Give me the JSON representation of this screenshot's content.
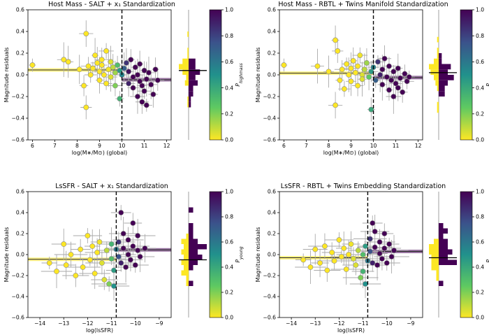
{
  "colormap": [
    "#fde725",
    "#5ec962",
    "#21918c",
    "#3b528b",
    "#440154"
  ],
  "panels": [
    {
      "title": "Host Mass - SALT + x₁ Standardization",
      "xlabel": "log(M∗/M⊙) (global)",
      "ylabel": "Magnitude residuals",
      "xticks": [
        6,
        7,
        8,
        9,
        10,
        11,
        12
      ],
      "yticks": [
        "0.6",
        "0.4",
        "0.2",
        "0.0",
        "−0.2",
        "−0.4",
        "−0.6"
      ],
      "cbar_label": "P_highmass",
      "cbar_ticks": [
        "1.0",
        "0.8",
        "0.6",
        "0.4",
        "0.2",
        "0.0"
      ]
    },
    {
      "title": "Host Mass - RBTL + Twins Manifold Standardization",
      "xlabel": "log(M∗/M⊙) (global)",
      "ylabel": "Magnitude residuals",
      "xticks": [
        6,
        7,
        8,
        9,
        10,
        11,
        12
      ],
      "yticks": [
        "0.6",
        "0.4",
        "0.2",
        "0.0",
        "−0.2",
        "−0.4",
        "−0.6"
      ],
      "cbar_label": "P_highmass",
      "cbar_ticks": [
        "1.0",
        "0.8",
        "0.6",
        "0.4",
        "0.2",
        "0.0"
      ]
    },
    {
      "title": "LsSFR - SALT + x₁ Standardization",
      "xlabel": "log(lsSFR)",
      "ylabel": "Magnitude residuals",
      "xticks": [
        -14,
        -13,
        -12,
        -11,
        -10,
        -9
      ],
      "yticks": [
        "0.6",
        "0.4",
        "0.2",
        "0.0",
        "−0.2",
        "−0.4",
        "−0.6"
      ],
      "cbar_label": "P_young",
      "cbar_ticks": [
        "1.0",
        "0.8",
        "0.6",
        "0.4",
        "0.2",
        "0.0"
      ]
    },
    {
      "title": "LsSFR - RBTL + Twins Embedding Standardization",
      "xlabel": "log(lsSFR)",
      "ylabel": "Magnitude residuals",
      "xticks": [
        -14,
        -13,
        -12,
        -11,
        -10,
        -9
      ],
      "yticks": [
        "0.6",
        "0.4",
        "0.2",
        "0.0",
        "−0.2",
        "−0.4",
        "−0.6"
      ],
      "cbar_label": "P_young",
      "cbar_ticks": [
        "1.0",
        "0.8",
        "0.6",
        "0.4",
        "0.2",
        "0.0"
      ]
    }
  ],
  "chart_data": [
    {
      "type": "scatter",
      "title": "Host Mass - SALT + x₁ Standardization",
      "xlabel": "log(M∗/M⊙) (global)",
      "ylabel": "Magnitude residuals",
      "xlim": [
        5.8,
        12.2
      ],
      "ylim": [
        -0.6,
        0.6
      ],
      "split_x": 10.0,
      "colorbar": {
        "label": "P_highmass",
        "range": [
          0,
          1
        ]
      },
      "step_means": [
        {
          "x": [
            5.8,
            10.0
          ],
          "y": 0.045
        },
        {
          "x": [
            10.0,
            12.2
          ],
          "y": -0.045
        }
      ],
      "histogram_mean_line": 0.04,
      "points": [
        {
          "x": 6.0,
          "y": 0.09,
          "p": 0.0
        },
        {
          "x": 7.4,
          "y": 0.14,
          "p": 0.0
        },
        {
          "x": 7.6,
          "y": 0.12,
          "p": 0.0
        },
        {
          "x": 8.1,
          "y": 0.05,
          "p": 0.0
        },
        {
          "x": 8.4,
          "y": 0.38,
          "p": 0.0
        },
        {
          "x": 8.4,
          "y": -0.3,
          "p": 0.0
        },
        {
          "x": 8.3,
          "y": -0.1,
          "p": 0.0
        },
        {
          "x": 8.5,
          "y": 0.08,
          "p": 0.0
        },
        {
          "x": 8.6,
          "y": 0.0,
          "p": 0.0
        },
        {
          "x": 8.7,
          "y": 0.06,
          "p": 0.0
        },
        {
          "x": 8.8,
          "y": 0.18,
          "p": 0.0
        },
        {
          "x": 8.9,
          "y": 0.11,
          "p": 0.0
        },
        {
          "x": 9.0,
          "y": 0.03,
          "p": 0.0
        },
        {
          "x": 9.0,
          "y": -0.05,
          "p": 0.0
        },
        {
          "x": 9.1,
          "y": 0.14,
          "p": 0.0
        },
        {
          "x": 9.1,
          "y": 0.09,
          "p": 0.0
        },
        {
          "x": 9.2,
          "y": 0.0,
          "p": 0.0
        },
        {
          "x": 9.3,
          "y": 0.22,
          "p": 0.0
        },
        {
          "x": 9.3,
          "y": -0.08,
          "p": 0.0
        },
        {
          "x": 9.4,
          "y": 0.05,
          "p": 0.02
        },
        {
          "x": 9.5,
          "y": 0.12,
          "p": 0.05
        },
        {
          "x": 9.5,
          "y": -0.02,
          "p": 0.05
        },
        {
          "x": 9.6,
          "y": 0.07,
          "p": 0.1
        },
        {
          "x": 9.7,
          "y": 0.02,
          "p": 0.15
        },
        {
          "x": 9.7,
          "y": -0.1,
          "p": 0.2
        },
        {
          "x": 9.8,
          "y": 0.09,
          "p": 0.3
        },
        {
          "x": 9.9,
          "y": -0.22,
          "p": 0.35
        },
        {
          "x": 9.9,
          "y": 0.04,
          "p": 0.45
        },
        {
          "x": 10.0,
          "y": 0.0,
          "p": 0.55
        },
        {
          "x": 10.1,
          "y": 0.06,
          "p": 0.7
        },
        {
          "x": 10.2,
          "y": 0.11,
          "p": 0.85
        },
        {
          "x": 10.3,
          "y": -0.08,
          "p": 0.9
        },
        {
          "x": 10.3,
          "y": 0.03,
          "p": 0.95
        },
        {
          "x": 10.4,
          "y": 0.14,
          "p": 1.0
        },
        {
          "x": 10.5,
          "y": -0.02,
          "p": 1.0
        },
        {
          "x": 10.5,
          "y": -0.12,
          "p": 1.0
        },
        {
          "x": 10.6,
          "y": 0.07,
          "p": 1.0
        },
        {
          "x": 10.7,
          "y": -0.2,
          "p": 1.0
        },
        {
          "x": 10.7,
          "y": 0.0,
          "p": 1.0
        },
        {
          "x": 10.8,
          "y": -0.06,
          "p": 1.0
        },
        {
          "x": 10.8,
          "y": 0.1,
          "p": 1.0
        },
        {
          "x": 10.9,
          "y": -0.25,
          "p": 1.0
        },
        {
          "x": 10.9,
          "y": -0.1,
          "p": 1.0
        },
        {
          "x": 11.0,
          "y": 0.04,
          "p": 1.0
        },
        {
          "x": 11.0,
          "y": -0.15,
          "p": 1.0
        },
        {
          "x": 11.1,
          "y": -0.28,
          "p": 1.0
        },
        {
          "x": 11.1,
          "y": -0.04,
          "p": 1.0
        },
        {
          "x": 11.2,
          "y": 0.02,
          "p": 1.0
        },
        {
          "x": 11.3,
          "y": -0.09,
          "p": 1.0
        },
        {
          "x": 11.4,
          "y": -0.18,
          "p": 1.0
        },
        {
          "x": 11.5,
          "y": 0.05,
          "p": 1.0
        },
        {
          "x": 11.6,
          "y": -0.05,
          "p": 1.0
        }
      ]
    },
    {
      "type": "scatter",
      "title": "Host Mass - RBTL + Twins Manifold Standardization",
      "xlabel": "log(M∗/M⊙) (global)",
      "ylabel": "Magnitude residuals",
      "xlim": [
        5.8,
        12.2
      ],
      "ylim": [
        -0.6,
        0.6
      ],
      "split_x": 10.0,
      "colorbar": {
        "label": "P_highmass",
        "range": [
          0,
          1
        ]
      },
      "step_means": [
        {
          "x": [
            5.8,
            10.0
          ],
          "y": 0.015
        },
        {
          "x": [
            10.0,
            12.2
          ],
          "y": -0.025
        }
      ],
      "histogram_mean_line": 0.02,
      "points": [
        {
          "x": 6.0,
          "y": 0.09,
          "p": 0.0
        },
        {
          "x": 7.5,
          "y": 0.08,
          "p": 0.0
        },
        {
          "x": 8.0,
          "y": 0.03,
          "p": 0.0
        },
        {
          "x": 8.3,
          "y": 0.32,
          "p": 0.0
        },
        {
          "x": 8.3,
          "y": -0.28,
          "p": 0.0
        },
        {
          "x": 8.4,
          "y": 0.22,
          "p": 0.0
        },
        {
          "x": 8.5,
          "y": -0.05,
          "p": 0.0
        },
        {
          "x": 8.6,
          "y": 0.05,
          "p": 0.0
        },
        {
          "x": 8.7,
          "y": -0.13,
          "p": 0.0
        },
        {
          "x": 8.8,
          "y": 0.1,
          "p": 0.0
        },
        {
          "x": 8.9,
          "y": 0.0,
          "p": 0.0
        },
        {
          "x": 9.0,
          "y": 0.06,
          "p": 0.0
        },
        {
          "x": 9.0,
          "y": -0.06,
          "p": 0.0
        },
        {
          "x": 9.1,
          "y": 0.13,
          "p": 0.0
        },
        {
          "x": 9.2,
          "y": 0.02,
          "p": 0.0
        },
        {
          "x": 9.3,
          "y": -0.1,
          "p": 0.0
        },
        {
          "x": 9.3,
          "y": 0.08,
          "p": 0.0
        },
        {
          "x": 9.4,
          "y": 0.18,
          "p": 0.02
        },
        {
          "x": 9.5,
          "y": 0.0,
          "p": 0.05
        },
        {
          "x": 9.5,
          "y": -0.04,
          "p": 0.05
        },
        {
          "x": 9.6,
          "y": 0.05,
          "p": 0.1
        },
        {
          "x": 9.7,
          "y": 0.11,
          "p": 0.15
        },
        {
          "x": 9.8,
          "y": -0.02,
          "p": 0.25
        },
        {
          "x": 9.9,
          "y": -0.32,
          "p": 0.4
        },
        {
          "x": 9.9,
          "y": 0.03,
          "p": 0.45
        },
        {
          "x": 10.0,
          "y": 0.07,
          "p": 0.55
        },
        {
          "x": 10.1,
          "y": -0.05,
          "p": 0.7
        },
        {
          "x": 10.2,
          "y": 0.12,
          "p": 0.85
        },
        {
          "x": 10.3,
          "y": 0.0,
          "p": 0.9
        },
        {
          "x": 10.4,
          "y": -0.09,
          "p": 1.0
        },
        {
          "x": 10.4,
          "y": 0.05,
          "p": 1.0
        },
        {
          "x": 10.5,
          "y": 0.15,
          "p": 1.0
        },
        {
          "x": 10.6,
          "y": -0.02,
          "p": 1.0
        },
        {
          "x": 10.7,
          "y": -0.14,
          "p": 1.0
        },
        {
          "x": 10.7,
          "y": 0.08,
          "p": 1.0
        },
        {
          "x": 10.8,
          "y": -0.05,
          "p": 1.0
        },
        {
          "x": 10.9,
          "y": 0.03,
          "p": 1.0
        },
        {
          "x": 10.9,
          "y": -0.2,
          "p": 1.0
        },
        {
          "x": 11.0,
          "y": -0.08,
          "p": 1.0
        },
        {
          "x": 11.1,
          "y": 0.06,
          "p": 1.0
        },
        {
          "x": 11.1,
          "y": -0.12,
          "p": 1.0
        },
        {
          "x": 11.2,
          "y": -0.03,
          "p": 1.0
        },
        {
          "x": 11.3,
          "y": -0.16,
          "p": 1.0
        },
        {
          "x": 11.4,
          "y": 0.01,
          "p": 1.0
        },
        {
          "x": 11.5,
          "y": -0.06,
          "p": 1.0
        },
        {
          "x": 11.6,
          "y": -0.02,
          "p": 1.0
        }
      ]
    },
    {
      "type": "scatter",
      "title": "LsSFR - SALT + x₁ Standardization",
      "xlabel": "log(lsSFR)",
      "ylabel": "Magnitude residuals",
      "xlim": [
        -14.5,
        -8.5
      ],
      "ylim": [
        -0.6,
        0.6
      ],
      "split_x": -10.8,
      "colorbar": {
        "label": "P_young",
        "range": [
          0,
          1
        ]
      },
      "step_means": [
        {
          "x": [
            -14.5,
            -10.8
          ],
          "y": -0.045
        },
        {
          "x": [
            -10.8,
            -8.5
          ],
          "y": 0.045
        }
      ],
      "histogram_mean_line": -0.05,
      "points": [
        {
          "x": -13.6,
          "y": -0.08,
          "p": 0.0
        },
        {
          "x": -13.3,
          "y": -0.16,
          "p": 0.0
        },
        {
          "x": -13.0,
          "y": 0.1,
          "p": 0.0
        },
        {
          "x": -12.9,
          "y": -0.1,
          "p": 0.0
        },
        {
          "x": -12.7,
          "y": 0.0,
          "p": 0.0
        },
        {
          "x": -12.5,
          "y": -0.2,
          "p": 0.0
        },
        {
          "x": -12.3,
          "y": 0.05,
          "p": 0.0
        },
        {
          "x": -12.2,
          "y": -0.12,
          "p": 0.0
        },
        {
          "x": -12.0,
          "y": 0.18,
          "p": 0.0
        },
        {
          "x": -11.9,
          "y": -0.05,
          "p": 0.0
        },
        {
          "x": -11.8,
          "y": 0.08,
          "p": 0.0
        },
        {
          "x": -11.7,
          "y": -0.18,
          "p": 0.0
        },
        {
          "x": -11.6,
          "y": 0.02,
          "p": 0.0
        },
        {
          "x": -11.5,
          "y": 0.12,
          "p": 0.02
        },
        {
          "x": -11.4,
          "y": -0.08,
          "p": 0.05
        },
        {
          "x": -11.3,
          "y": -0.24,
          "p": 0.05
        },
        {
          "x": -11.2,
          "y": 0.04,
          "p": 0.1
        },
        {
          "x": -11.1,
          "y": -0.28,
          "p": 0.2
        },
        {
          "x": -11.0,
          "y": -0.04,
          "p": 0.3
        },
        {
          "x": -11.0,
          "y": 0.1,
          "p": 0.35
        },
        {
          "x": -10.9,
          "y": -0.15,
          "p": 0.45
        },
        {
          "x": -10.9,
          "y": -0.3,
          "p": 0.5
        },
        {
          "x": -10.8,
          "y": 0.05,
          "p": 0.6
        },
        {
          "x": -10.7,
          "y": -0.02,
          "p": 0.75
        },
        {
          "x": -10.7,
          "y": 0.12,
          "p": 0.85
        },
        {
          "x": -10.6,
          "y": -0.08,
          "p": 0.9
        },
        {
          "x": -10.6,
          "y": 0.4,
          "p": 1.0
        },
        {
          "x": -10.5,
          "y": 0.06,
          "p": 1.0
        },
        {
          "x": -10.5,
          "y": 0.2,
          "p": 1.0
        },
        {
          "x": -10.4,
          "y": -0.12,
          "p": 1.0
        },
        {
          "x": -10.3,
          "y": 0.0,
          "p": 1.0
        },
        {
          "x": -10.3,
          "y": 0.14,
          "p": 1.0
        },
        {
          "x": -10.2,
          "y": -0.05,
          "p": 1.0
        },
        {
          "x": -10.1,
          "y": 0.3,
          "p": 1.0
        },
        {
          "x": -10.1,
          "y": 0.08,
          "p": 1.0
        },
        {
          "x": -10.0,
          "y": -0.1,
          "p": 1.0
        },
        {
          "x": -9.9,
          "y": 0.04,
          "p": 1.0
        },
        {
          "x": -9.9,
          "y": 0.18,
          "p": 1.0
        },
        {
          "x": -9.8,
          "y": -0.02,
          "p": 1.0
        },
        {
          "x": -9.6,
          "y": 0.06,
          "p": 1.0
        }
      ]
    },
    {
      "type": "scatter",
      "title": "LsSFR - RBTL + Twins Embedding Standardization",
      "xlabel": "log(lsSFR)",
      "ylabel": "Magnitude residuals",
      "xlim": [
        -14.5,
        -8.5
      ],
      "ylim": [
        -0.6,
        0.6
      ],
      "split_x": -10.8,
      "colorbar": {
        "label": "P_young",
        "range": [
          0,
          1
        ]
      },
      "step_means": [
        {
          "x": [
            -14.5,
            -10.8
          ],
          "y": -0.03
        },
        {
          "x": [
            -10.8,
            -8.5
          ],
          "y": 0.03
        }
      ],
      "histogram_mean_line": -0.03,
      "points": [
        {
          "x": -13.5,
          "y": -0.05,
          "p": 0.0
        },
        {
          "x": -13.2,
          "y": -0.12,
          "p": 0.0
        },
        {
          "x": -13.0,
          "y": 0.05,
          "p": 0.0
        },
        {
          "x": -12.8,
          "y": -0.08,
          "p": 0.0
        },
        {
          "x": -12.6,
          "y": 0.08,
          "p": 0.0
        },
        {
          "x": -12.5,
          "y": -0.15,
          "p": 0.0
        },
        {
          "x": -12.3,
          "y": 0.02,
          "p": 0.0
        },
        {
          "x": -12.2,
          "y": -0.06,
          "p": 0.0
        },
        {
          "x": -12.0,
          "y": 0.14,
          "p": 0.0
        },
        {
          "x": -11.9,
          "y": -0.02,
          "p": 0.0
        },
        {
          "x": -11.8,
          "y": 0.06,
          "p": 0.0
        },
        {
          "x": -11.7,
          "y": -0.14,
          "p": 0.0
        },
        {
          "x": -11.6,
          "y": 0.0,
          "p": 0.0
        },
        {
          "x": -11.5,
          "y": 0.1,
          "p": 0.02
        },
        {
          "x": -11.4,
          "y": -0.04,
          "p": 0.05
        },
        {
          "x": -11.3,
          "y": -0.1,
          "p": 0.05
        },
        {
          "x": -11.2,
          "y": 0.04,
          "p": 0.1
        },
        {
          "x": -11.1,
          "y": -0.22,
          "p": 0.2
        },
        {
          "x": -11.0,
          "y": 0.0,
          "p": 0.3
        },
        {
          "x": -11.0,
          "y": -0.16,
          "p": 0.35
        },
        {
          "x": -10.9,
          "y": 0.08,
          "p": 0.45
        },
        {
          "x": -10.9,
          "y": -0.28,
          "p": 0.5
        },
        {
          "x": -10.8,
          "y": -0.06,
          "p": 0.6
        },
        {
          "x": -10.7,
          "y": 0.03,
          "p": 0.75
        },
        {
          "x": -10.7,
          "y": 0.15,
          "p": 0.85
        },
        {
          "x": -10.6,
          "y": -0.08,
          "p": 0.9
        },
        {
          "x": -10.6,
          "y": 0.3,
          "p": 1.0
        },
        {
          "x": -10.5,
          "y": 0.07,
          "p": 1.0
        },
        {
          "x": -10.5,
          "y": 0.22,
          "p": 1.0
        },
        {
          "x": -10.4,
          "y": -0.1,
          "p": 1.0
        },
        {
          "x": -10.3,
          "y": 0.01,
          "p": 1.0
        },
        {
          "x": -10.3,
          "y": 0.12,
          "p": 1.0
        },
        {
          "x": -10.2,
          "y": -0.04,
          "p": 1.0
        },
        {
          "x": -10.1,
          "y": 0.2,
          "p": 1.0
        },
        {
          "x": -10.1,
          "y": 0.06,
          "p": 1.0
        },
        {
          "x": -10.0,
          "y": -0.08,
          "p": 1.0
        },
        {
          "x": -9.9,
          "y": 0.1,
          "p": 1.0
        },
        {
          "x": -9.8,
          "y": -0.02,
          "p": 1.0
        },
        {
          "x": -9.7,
          "y": 0.04,
          "p": 1.0
        }
      ]
    }
  ]
}
